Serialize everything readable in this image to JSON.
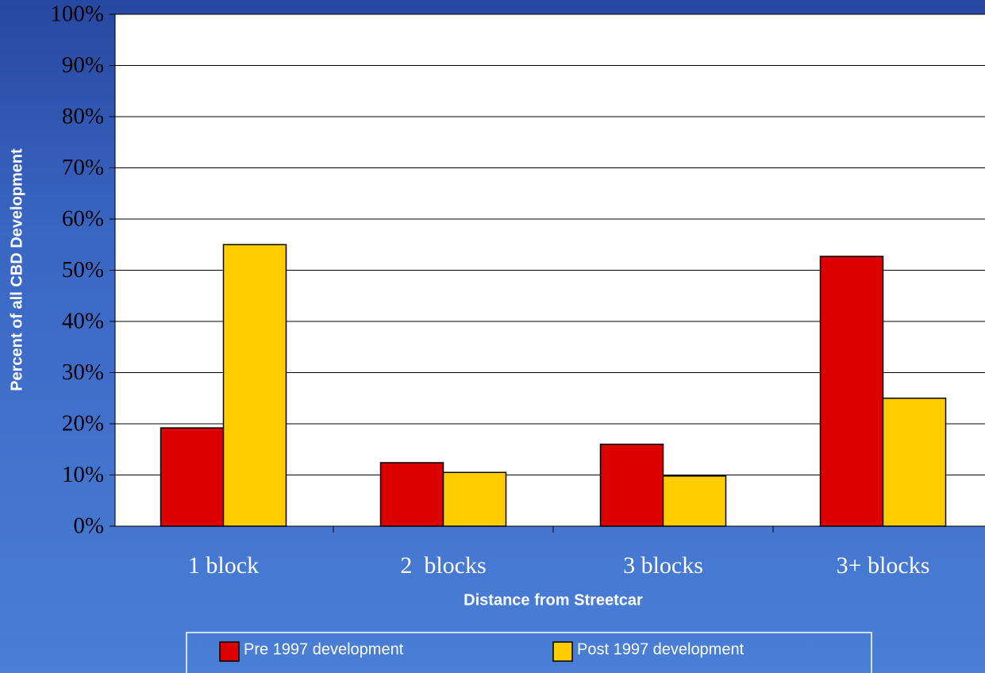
{
  "chart_data": {
    "type": "bar",
    "categories": [
      "1 block",
      "2  blocks",
      "3 blocks",
      "3+ blocks"
    ],
    "series": [
      {
        "name": "Pre 1997 development",
        "color": "#dd0000",
        "values": [
          19.2,
          12.4,
          16,
          52.7
        ]
      },
      {
        "name": "Post 1997 development",
        "color": "#ffcc00",
        "values": [
          55,
          10.5,
          9.8,
          25
        ]
      }
    ],
    "xlabel": "Distance from Streetcar",
    "ylabel": "Percent of all CBD Development",
    "ylim": [
      0,
      100
    ],
    "yticks": [
      {
        "value": 0,
        "label": "0%"
      },
      {
        "value": 10,
        "label": "10%"
      },
      {
        "value": 20,
        "label": "20%"
      },
      {
        "value": 30,
        "label": "30%"
      },
      {
        "value": 40,
        "label": "40%"
      },
      {
        "value": 50,
        "label": "50%"
      },
      {
        "value": 60,
        "label": "60%"
      },
      {
        "value": 70,
        "label": "70%"
      },
      {
        "value": 80,
        "label": "80%"
      },
      {
        "value": 90,
        "label": "90%"
      },
      {
        "value": 100,
        "label": "100%"
      }
    ],
    "grid": true,
    "legend": "bottom"
  }
}
